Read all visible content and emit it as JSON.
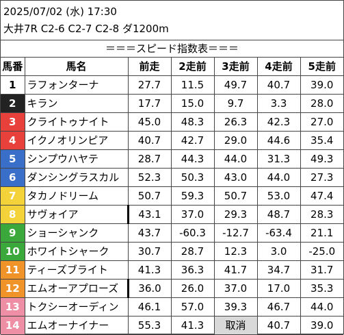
{
  "header": {
    "date_line": "2025/07/02 (水) 17:30",
    "race_line": "大井7R C2-6 C2-7 C2-8 ダ1200m"
  },
  "subtitle": "＝＝＝スピード指数表＝＝＝",
  "table": {
    "columns": [
      "馬番",
      "馬名",
      "前走",
      "2走前",
      "3走前",
      "4走前",
      "5走前"
    ],
    "rows": [
      {
        "no": "1",
        "name": "ラフォンターナ",
        "bg": "#ffffff",
        "fg": "#000000",
        "v": [
          "27.7",
          "11.5",
          "49.7",
          "40.7",
          "39.0"
        ]
      },
      {
        "no": "2",
        "name": "キラン",
        "bg": "#222222",
        "fg": "#ffffff",
        "v": [
          "17.7",
          "15.0",
          "9.7",
          "3.3",
          "28.0"
        ]
      },
      {
        "no": "3",
        "name": "クライトゥナイト",
        "bg": "#e8403a",
        "fg": "#ffffff",
        "v": [
          "45.0",
          "48.3",
          "26.3",
          "42.3",
          "27.0"
        ]
      },
      {
        "no": "4",
        "name": "イクノオリンピア",
        "bg": "#e8403a",
        "fg": "#ffffff",
        "v": [
          "40.7",
          "42.7",
          "29.0",
          "44.6",
          "35.4"
        ]
      },
      {
        "no": "5",
        "name": "シンプウハヤテ",
        "bg": "#3a6fc9",
        "fg": "#ffffff",
        "v": [
          "28.7",
          "44.3",
          "44.0",
          "31.3",
          "49.3"
        ]
      },
      {
        "no": "6",
        "name": "ダンシングラスカル",
        "bg": "#3a6fc9",
        "fg": "#ffffff",
        "v": [
          "52.3",
          "50.3",
          "43.0",
          "44.0",
          "27.3"
        ]
      },
      {
        "no": "7",
        "name": "タカノドリーム",
        "bg": "#f3d23a",
        "fg": "#ffffff",
        "v": [
          "50.7",
          "59.3",
          "50.7",
          "53.0",
          "47.4"
        ]
      },
      {
        "no": "8",
        "name": "サヴォイア",
        "bg": "#f3d23a",
        "fg": "#ffffff",
        "blinker": true,
        "v": [
          "43.1",
          "37.0",
          "29.3",
          "48.7",
          "28.3"
        ]
      },
      {
        "no": "9",
        "name": "ショーシャンク",
        "bg": "#3aa83a",
        "fg": "#ffffff",
        "v": [
          "43.7",
          "-60.3",
          "-12.7",
          "-63.4",
          "21.1"
        ]
      },
      {
        "no": "10",
        "name": "ホワイトシャーク",
        "bg": "#3aa83a",
        "fg": "#ffffff",
        "v": [
          "30.7",
          "28.7",
          "12.3",
          "3.0",
          "-25.0"
        ]
      },
      {
        "no": "11",
        "name": "ティーズブライト",
        "bg": "#f0942a",
        "fg": "#ffffff",
        "v": [
          "41.3",
          "36.3",
          "41.7",
          "34.7",
          "31.7"
        ]
      },
      {
        "no": "12",
        "name": "エムオーアプローズ",
        "bg": "#f0942a",
        "fg": "#ffffff",
        "blinker": true,
        "v": [
          "36.0",
          "26.0",
          "37.0",
          "17.0",
          "35.3"
        ]
      },
      {
        "no": "13",
        "name": "トクシーオーディン",
        "bg": "#ef8fa6",
        "fg": "#ffffff",
        "v": [
          "46.1",
          "57.0",
          "39.3",
          "46.7",
          "44.0"
        ]
      },
      {
        "no": "14",
        "name": "エムオーナイナー",
        "bg": "#ef8fa6",
        "fg": "#ffffff",
        "cancel_col": 2,
        "v": [
          "55.3",
          "41.3",
          "取消",
          "40.7",
          "39.0"
        ]
      }
    ]
  }
}
